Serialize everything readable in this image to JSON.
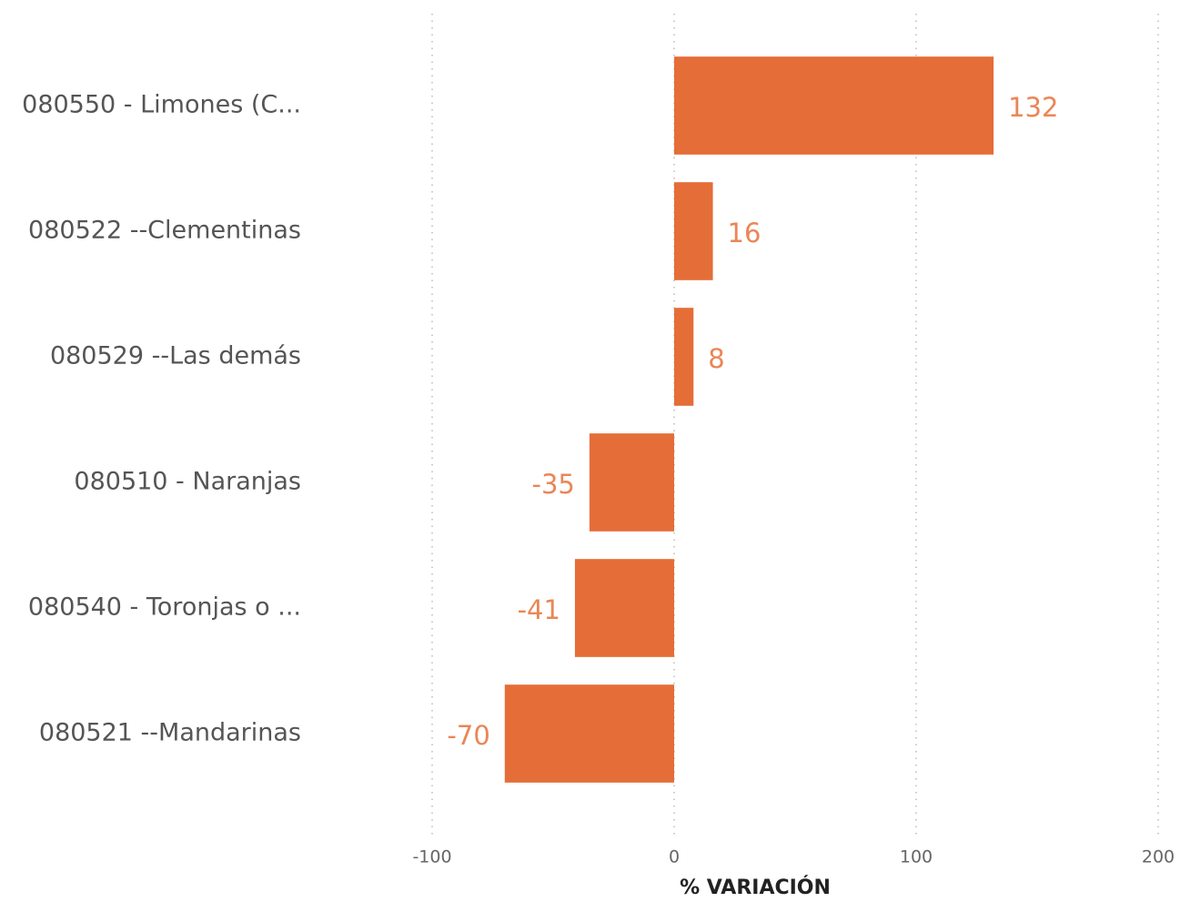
{
  "chart_data": {
    "type": "bar",
    "orientation": "horizontal",
    "categories": [
      "080550 - Limones (C...",
      "080522 --Clementinas",
      "080529 --Las demás",
      "080510 - Naranjas",
      "080540 - Toronjas o ...",
      "080521 --Mandarinas"
    ],
    "values": [
      132,
      16,
      8,
      -35,
      -41,
      -70
    ],
    "color": "#e56d38",
    "xlabel": "% VARIACIÓN",
    "xlim": [
      -100,
      200
    ],
    "xticks": [
      -100,
      0,
      100,
      200
    ],
    "grid": true
  }
}
